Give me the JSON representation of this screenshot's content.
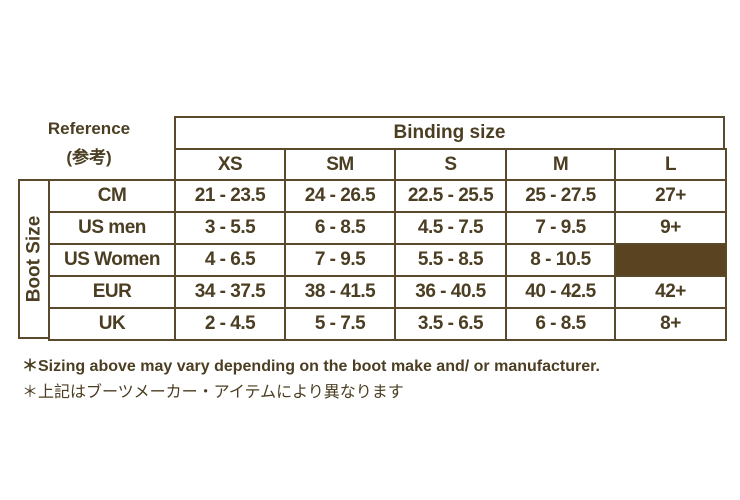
{
  "reference": {
    "line1": "Reference",
    "line2": "(参考)"
  },
  "binding_header": "Binding size",
  "boot_size_label": "Boot Size",
  "columns": [
    "XS",
    "SM",
    "S",
    "M",
    "L"
  ],
  "rows": [
    {
      "label": "CM",
      "values": [
        "21 - 23.5",
        "24 - 26.5",
        "22.5 - 25.5",
        "25 - 27.5",
        "27+"
      ]
    },
    {
      "label": "US men",
      "values": [
        "3 - 5.5",
        "6 - 8.5",
        "4.5 - 7.5",
        "7 - 9.5",
        "9+"
      ]
    },
    {
      "label": "US Women",
      "values": [
        "4 - 6.5",
        "7 - 9.5",
        "5.5 - 8.5",
        "8 - 10.5",
        null
      ]
    },
    {
      "label": "EUR",
      "values": [
        "34 - 37.5",
        "38 - 41.5",
        "36 - 40.5",
        "40 - 42.5",
        "42+"
      ]
    },
    {
      "label": "UK",
      "values": [
        "2 - 4.5",
        "5 - 7.5",
        "3.5 - 6.5",
        "6 - 8.5",
        "8+"
      ]
    }
  ],
  "unavailable_fill": "#5a4321",
  "notes": [
    "＊Sizing above may vary depending on the boot make and/ or manufacturer.",
    "＊上記はブーツメーカー・アイテムにより異なります"
  ]
}
